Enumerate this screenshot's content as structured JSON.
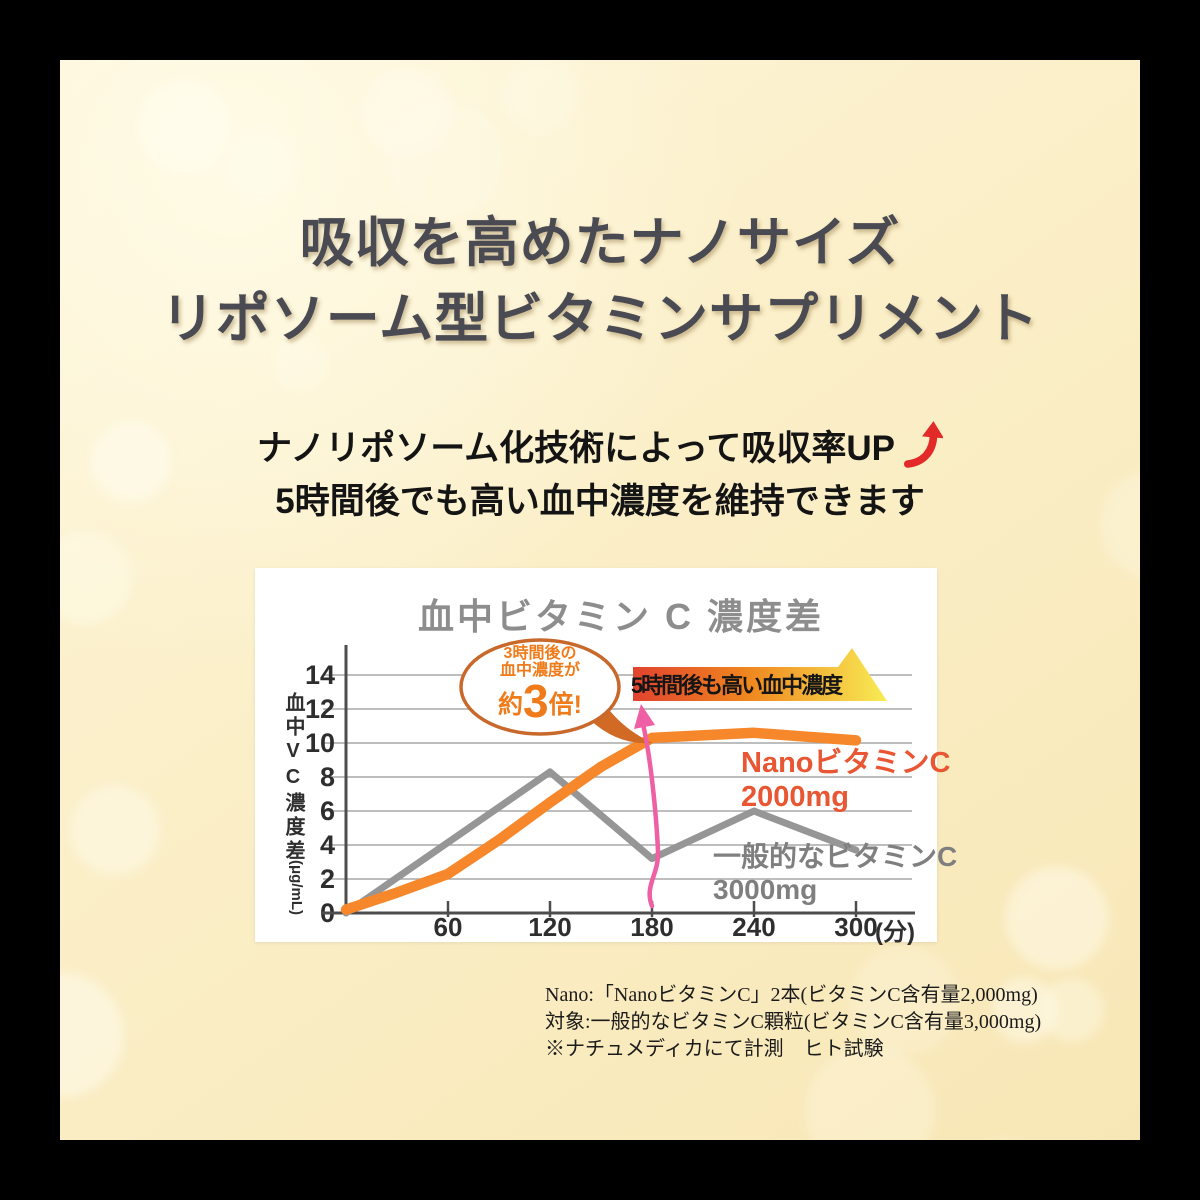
{
  "header": {
    "title_line1": "吸収を高めたナノサイズ",
    "title_line2": "リポソーム型ビタミンサプリメント",
    "subtitle_line1": "ナノリポソーム化技術によって吸収率UP",
    "subtitle_line2": "5時間後でも高い血中濃度を維持できます",
    "accent_arrow_color": "#e22a28"
  },
  "chart_data": {
    "type": "line",
    "title": "血中ビタミン C 濃度差",
    "xlabel": "(分)",
    "ylabel": "血中VC濃度差",
    "ylabel_unit": "(μg/mL)",
    "xticks": [
      60,
      120,
      180,
      240,
      300
    ],
    "yticks": [
      0,
      2,
      4,
      6,
      8,
      10,
      12,
      14
    ],
    "xlim": [
      0,
      320
    ],
    "ylim": [
      0,
      15.5
    ],
    "grid": true,
    "legend_position": "inside-right",
    "series": [
      {
        "name": "NanoビタミンC 2000mg",
        "label_line1": "NanoビタミンC",
        "label_line2": "2000mg",
        "color": "#f6872b",
        "text_color": "#e85633",
        "width": 10.5,
        "x": [
          0,
          30,
          60,
          90,
          120,
          150,
          180,
          240,
          300
        ],
        "values": [
          0.2,
          1.2,
          2.3,
          4.3,
          6.5,
          8.6,
          10.3,
          10.6,
          10.15
        ]
      },
      {
        "name": "一般的なビタミンC 3000mg",
        "label_line1": "一般的なビタミンC",
        "label_line2": "3000mg",
        "color": "#969696",
        "text_color": "#7f7f7f",
        "width": 7,
        "x": [
          0,
          120,
          180,
          240,
          300
        ],
        "values": [
          0,
          8.3,
          3.2,
          6.0,
          3.7
        ]
      }
    ],
    "annotations": {
      "bubble": {
        "line1": "3時間後の",
        "line2": "血中濃度が",
        "big_prefix": "約",
        "big_number": "3",
        "big_suffix": "倍!",
        "text_color": "#ef7b1b",
        "border_color": "#c8682a"
      },
      "banner": {
        "text": "5時間後も高い血中濃度",
        "gradient_left": "#e2432e",
        "gradient_mid": "#f0861f",
        "gradient_right": "#f8ec55"
      },
      "comparison_arrow_color": "#ee5fa3"
    }
  },
  "footnotes": {
    "line1": "Nano:「NanoビタミンC」2本(ビタミンC含有量2,000mg)",
    "line2": "対象:一般的なビタミンC顆粒(ビタミンC含有量3,000mg)",
    "line3": "※ナチュメディカにて計測　ヒト試験"
  }
}
